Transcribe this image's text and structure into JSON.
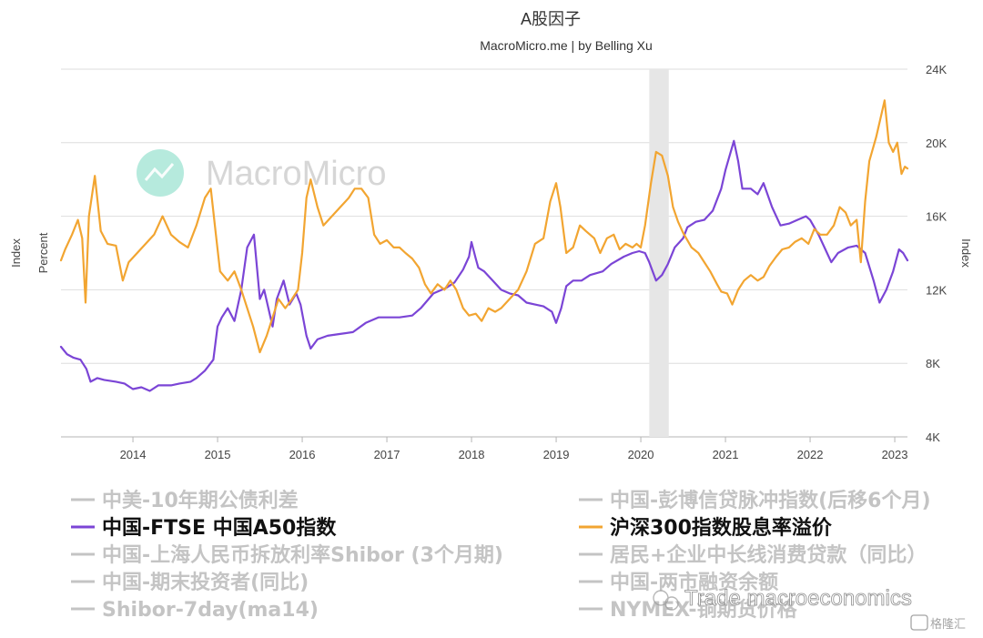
{
  "colors": {
    "purple": "#7b45d6",
    "orange": "#f2a531",
    "legend_active": "#111111",
    "legend_inactive": "#c4c4c4",
    "grid": "#dedede",
    "recession": "#e6e6e6",
    "logo": "#7fd8c4"
  },
  "chart_data": {
    "type": "line",
    "title": "A股因子",
    "subtitle": "MacroMicro.me | by Belling Xu",
    "axes": {
      "left_outer_label": "Index",
      "left_inner_label": "Percent",
      "right_label": "Index",
      "right_ticks": [
        "24K",
        "20K",
        "16K",
        "12K",
        "8K",
        "4K"
      ],
      "right_tick_values": [
        24000,
        20000,
        16000,
        12000,
        8000,
        4000
      ],
      "right_range": [
        4000,
        24000
      ],
      "x_tick_labels": [
        "2014",
        "2015",
        "2016",
        "2017",
        "2018",
        "2019",
        "2020",
        "2021",
        "2022",
        "2023"
      ],
      "x_tick_values": [
        2014,
        2015,
        2016,
        2017,
        2018,
        2019,
        2020,
        2021,
        2022,
        2023
      ],
      "x_range": [
        2013.15,
        2023.15
      ],
      "grid": true
    },
    "recession_band": [
      2020.1,
      2020.33
    ],
    "series": [
      {
        "name": "中国-FTSE 中国A50指数",
        "color": "#7b45d6",
        "axis": "right",
        "points": [
          [
            2013.15,
            8900
          ],
          [
            2013.22,
            8500
          ],
          [
            2013.3,
            8300
          ],
          [
            2013.38,
            8200
          ],
          [
            2013.45,
            7700
          ],
          [
            2013.5,
            7000
          ],
          [
            2013.58,
            7200
          ],
          [
            2013.66,
            7100
          ],
          [
            2013.8,
            7000
          ],
          [
            2013.9,
            6900
          ],
          [
            2014.0,
            6600
          ],
          [
            2014.1,
            6700
          ],
          [
            2014.2,
            6500
          ],
          [
            2014.3,
            6800
          ],
          [
            2014.45,
            6800
          ],
          [
            2014.55,
            6900
          ],
          [
            2014.68,
            7000
          ],
          [
            2014.75,
            7200
          ],
          [
            2014.85,
            7600
          ],
          [
            2014.95,
            8200
          ],
          [
            2015.0,
            10000
          ],
          [
            2015.05,
            10500
          ],
          [
            2015.12,
            11000
          ],
          [
            2015.2,
            10300
          ],
          [
            2015.28,
            12000
          ],
          [
            2015.35,
            14300
          ],
          [
            2015.43,
            15000
          ],
          [
            2015.5,
            11500
          ],
          [
            2015.55,
            12000
          ],
          [
            2015.65,
            10000
          ],
          [
            2015.7,
            11500
          ],
          [
            2015.78,
            12500
          ],
          [
            2015.85,
            11200
          ],
          [
            2015.93,
            11800
          ],
          [
            2015.98,
            11200
          ],
          [
            2016.05,
            9500
          ],
          [
            2016.1,
            8800
          ],
          [
            2016.18,
            9300
          ],
          [
            2016.3,
            9500
          ],
          [
            2016.45,
            9600
          ],
          [
            2016.6,
            9700
          ],
          [
            2016.75,
            10200
          ],
          [
            2016.9,
            10500
          ],
          [
            2017.0,
            10500
          ],
          [
            2017.15,
            10500
          ],
          [
            2017.3,
            10600
          ],
          [
            2017.4,
            11000
          ],
          [
            2017.55,
            11800
          ],
          [
            2017.7,
            12100
          ],
          [
            2017.8,
            12400
          ],
          [
            2017.9,
            13100
          ],
          [
            2017.97,
            13800
          ],
          [
            2018.0,
            14600
          ],
          [
            2018.05,
            13700
          ],
          [
            2018.08,
            13200
          ],
          [
            2018.15,
            13000
          ],
          [
            2018.25,
            12500
          ],
          [
            2018.35,
            12000
          ],
          [
            2018.45,
            11800
          ],
          [
            2018.55,
            11700
          ],
          [
            2018.65,
            11300
          ],
          [
            2018.75,
            11200
          ],
          [
            2018.85,
            11100
          ],
          [
            2018.95,
            10800
          ],
          [
            2019.0,
            10200
          ],
          [
            2019.06,
            11000
          ],
          [
            2019.12,
            12200
          ],
          [
            2019.2,
            12500
          ],
          [
            2019.3,
            12500
          ],
          [
            2019.4,
            12800
          ],
          [
            2019.55,
            13000
          ],
          [
            2019.65,
            13400
          ],
          [
            2019.8,
            13800
          ],
          [
            2019.9,
            14000
          ],
          [
            2019.98,
            14100
          ],
          [
            2020.05,
            14000
          ],
          [
            2020.1,
            13500
          ],
          [
            2020.18,
            12500
          ],
          [
            2020.25,
            12800
          ],
          [
            2020.32,
            13400
          ],
          [
            2020.4,
            14300
          ],
          [
            2020.5,
            14800
          ],
          [
            2020.55,
            15400
          ],
          [
            2020.65,
            15700
          ],
          [
            2020.75,
            15800
          ],
          [
            2020.85,
            16300
          ],
          [
            2020.95,
            17500
          ],
          [
            2021.0,
            18500
          ],
          [
            2021.1,
            20100
          ],
          [
            2021.15,
            19000
          ],
          [
            2021.2,
            17500
          ],
          [
            2021.3,
            17500
          ],
          [
            2021.38,
            17200
          ],
          [
            2021.45,
            17800
          ],
          [
            2021.55,
            16500
          ],
          [
            2021.65,
            15500
          ],
          [
            2021.75,
            15600
          ],
          [
            2021.85,
            15800
          ],
          [
            2021.95,
            16000
          ],
          [
            2022.0,
            15800
          ],
          [
            2022.1,
            15000
          ],
          [
            2022.18,
            14200
          ],
          [
            2022.25,
            13500
          ],
          [
            2022.33,
            14000
          ],
          [
            2022.45,
            14300
          ],
          [
            2022.55,
            14400
          ],
          [
            2022.65,
            14000
          ],
          [
            2022.75,
            12500
          ],
          [
            2022.82,
            11300
          ],
          [
            2022.9,
            12000
          ],
          [
            2022.98,
            13000
          ],
          [
            2023.05,
            14200
          ],
          [
            2023.1,
            14000
          ],
          [
            2023.15,
            13600
          ]
        ]
      },
      {
        "name": "沪深300指数股息率溢价",
        "color": "#f2a531",
        "axis": "right",
        "points": [
          [
            2013.15,
            13600
          ],
          [
            2013.2,
            14200
          ],
          [
            2013.28,
            15000
          ],
          [
            2013.35,
            15800
          ],
          [
            2013.4,
            14800
          ],
          [
            2013.44,
            11300
          ],
          [
            2013.48,
            16000
          ],
          [
            2013.55,
            18200
          ],
          [
            2013.62,
            15200
          ],
          [
            2013.7,
            14500
          ],
          [
            2013.8,
            14400
          ],
          [
            2013.88,
            12500
          ],
          [
            2013.95,
            13500
          ],
          [
            2014.05,
            14000
          ],
          [
            2014.15,
            14500
          ],
          [
            2014.25,
            15000
          ],
          [
            2014.35,
            16000
          ],
          [
            2014.45,
            15000
          ],
          [
            2014.55,
            14600
          ],
          [
            2014.65,
            14300
          ],
          [
            2014.75,
            15500
          ],
          [
            2014.85,
            17000
          ],
          [
            2014.92,
            17500
          ],
          [
            2014.98,
            15000
          ],
          [
            2015.03,
            13000
          ],
          [
            2015.12,
            12500
          ],
          [
            2015.2,
            13000
          ],
          [
            2015.28,
            12000
          ],
          [
            2015.35,
            11000
          ],
          [
            2015.42,
            10000
          ],
          [
            2015.5,
            8600
          ],
          [
            2015.58,
            9500
          ],
          [
            2015.65,
            10500
          ],
          [
            2015.72,
            11500
          ],
          [
            2015.8,
            11000
          ],
          [
            2015.88,
            11500
          ],
          [
            2015.95,
            12000
          ],
          [
            2016.0,
            14000
          ],
          [
            2016.05,
            17000
          ],
          [
            2016.1,
            18000
          ],
          [
            2016.18,
            16500
          ],
          [
            2016.25,
            15500
          ],
          [
            2016.35,
            16000
          ],
          [
            2016.45,
            16500
          ],
          [
            2016.55,
            17000
          ],
          [
            2016.62,
            17500
          ],
          [
            2016.7,
            17500
          ],
          [
            2016.78,
            17000
          ],
          [
            2016.85,
            15000
          ],
          [
            2016.92,
            14500
          ],
          [
            2017.0,
            14700
          ],
          [
            2017.08,
            14300
          ],
          [
            2017.15,
            14300
          ],
          [
            2017.22,
            14000
          ],
          [
            2017.3,
            13700
          ],
          [
            2017.38,
            13200
          ],
          [
            2017.45,
            12300
          ],
          [
            2017.52,
            11800
          ],
          [
            2017.6,
            12300
          ],
          [
            2017.68,
            12000
          ],
          [
            2017.75,
            12500
          ],
          [
            2017.82,
            12000
          ],
          [
            2017.9,
            11000
          ],
          [
            2017.97,
            10600
          ],
          [
            2018.05,
            10700
          ],
          [
            2018.12,
            10300
          ],
          [
            2018.2,
            11000
          ],
          [
            2018.28,
            10800
          ],
          [
            2018.35,
            11000
          ],
          [
            2018.45,
            11500
          ],
          [
            2018.55,
            12000
          ],
          [
            2018.65,
            13000
          ],
          [
            2018.75,
            14500
          ],
          [
            2018.85,
            14800
          ],
          [
            2018.93,
            16800
          ],
          [
            2019.0,
            17800
          ],
          [
            2019.05,
            16500
          ],
          [
            2019.12,
            14000
          ],
          [
            2019.2,
            14300
          ],
          [
            2019.28,
            15500
          ],
          [
            2019.35,
            15200
          ],
          [
            2019.45,
            14800
          ],
          [
            2019.52,
            14000
          ],
          [
            2019.6,
            14800
          ],
          [
            2019.68,
            15000
          ],
          [
            2019.75,
            14200
          ],
          [
            2019.82,
            14500
          ],
          [
            2019.9,
            14300
          ],
          [
            2019.95,
            14500
          ],
          [
            2020.0,
            14300
          ],
          [
            2020.05,
            15500
          ],
          [
            2020.12,
            17800
          ],
          [
            2020.18,
            19500
          ],
          [
            2020.25,
            19300
          ],
          [
            2020.32,
            18200
          ],
          [
            2020.38,
            16500
          ],
          [
            2020.44,
            15700
          ],
          [
            2020.5,
            15100
          ],
          [
            2020.55,
            14700
          ],
          [
            2020.6,
            14300
          ],
          [
            2020.68,
            14000
          ],
          [
            2020.75,
            13500
          ],
          [
            2020.82,
            13000
          ],
          [
            2020.9,
            12300
          ],
          [
            2020.95,
            11900
          ],
          [
            2021.02,
            11800
          ],
          [
            2021.08,
            11200
          ],
          [
            2021.15,
            12000
          ],
          [
            2021.22,
            12500
          ],
          [
            2021.3,
            12800
          ],
          [
            2021.38,
            12500
          ],
          [
            2021.45,
            12700
          ],
          [
            2021.52,
            13300
          ],
          [
            2021.6,
            13800
          ],
          [
            2021.67,
            14200
          ],
          [
            2021.75,
            14300
          ],
          [
            2021.82,
            14600
          ],
          [
            2021.9,
            14800
          ],
          [
            2021.98,
            14500
          ],
          [
            2022.05,
            15300
          ],
          [
            2022.12,
            15000
          ],
          [
            2022.2,
            15000
          ],
          [
            2022.28,
            15500
          ],
          [
            2022.35,
            16500
          ],
          [
            2022.42,
            16200
          ],
          [
            2022.48,
            15500
          ],
          [
            2022.55,
            15800
          ],
          [
            2022.6,
            13500
          ],
          [
            2022.65,
            16800
          ],
          [
            2022.7,
            19000
          ],
          [
            2022.78,
            20300
          ],
          [
            2022.84,
            21500
          ],
          [
            2022.88,
            22300
          ],
          [
            2022.93,
            20000
          ],
          [
            2022.98,
            19500
          ],
          [
            2023.03,
            20000
          ],
          [
            2023.08,
            18300
          ],
          [
            2023.12,
            18700
          ],
          [
            2023.15,
            18600
          ]
        ]
      }
    ],
    "legend": [
      {
        "label": "中美-10年期公债利差",
        "active": false,
        "column": 0
      },
      {
        "label": "中国-FTSE 中国A50指数",
        "active": true,
        "color": "#7b45d6",
        "column": 0
      },
      {
        "label": "中国-上海人民币拆放利率Shibor (3个月期)",
        "active": false,
        "column": 0
      },
      {
        "label": "中国-期末投资者(同比)",
        "active": false,
        "column": 0
      },
      {
        "label": "Shibor-7day(ma14)",
        "active": false,
        "column": 0
      },
      {
        "label": "中国-彭博信贷脉冲指数(后移6个月)",
        "active": false,
        "column": 1
      },
      {
        "label": "沪深300指数股息率溢价",
        "active": true,
        "color": "#f2a531",
        "column": 1
      },
      {
        "label": "居民+企业中长线消费贷款（同比）",
        "active": false,
        "column": 1
      },
      {
        "label": "中国-两市融资余额",
        "active": false,
        "column": 1
      },
      {
        "label": "NYMEX-铜期货价格",
        "active": false,
        "column": 1
      }
    ]
  },
  "watermark": {
    "brand": "MacroMicro",
    "wechat": "Trade macroeconomics",
    "badge": "格隆汇"
  }
}
